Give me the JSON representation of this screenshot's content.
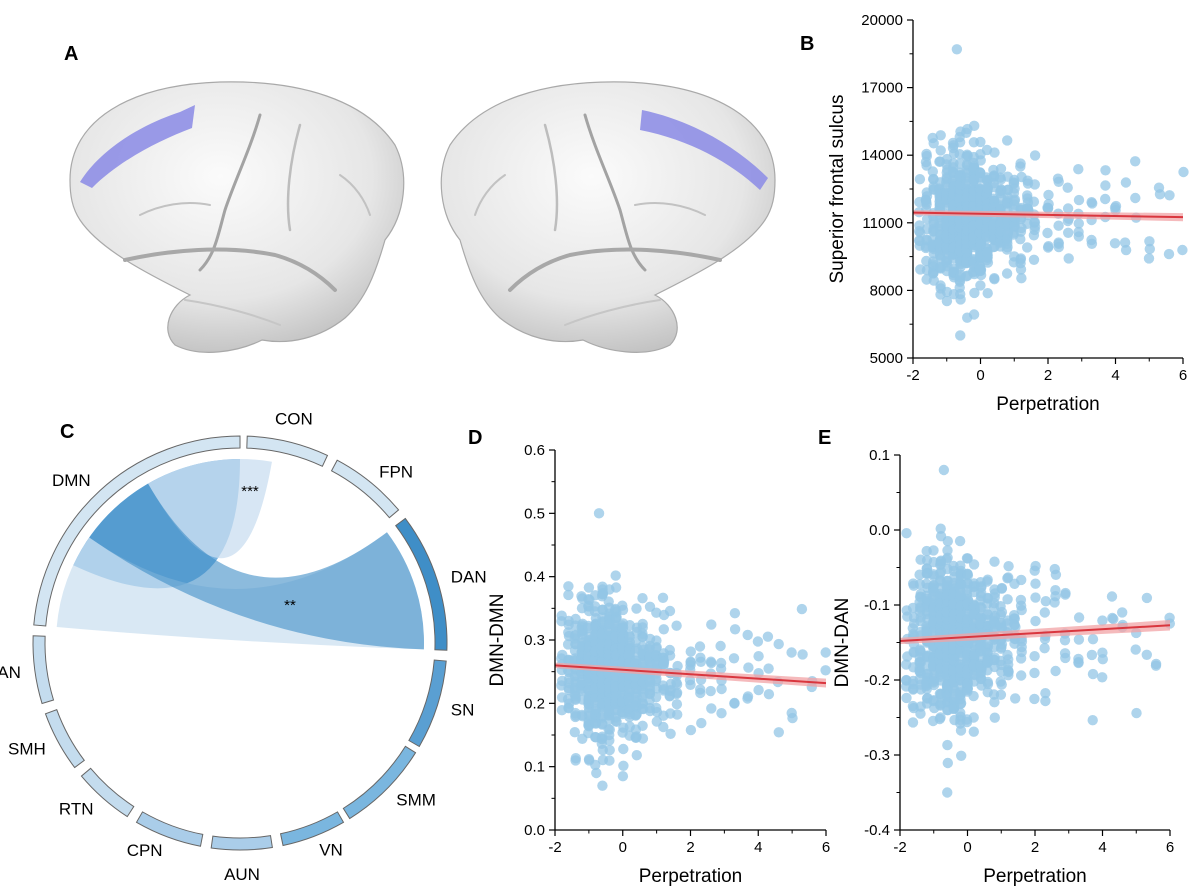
{
  "panels": {
    "A": "A",
    "B": "B",
    "C": "C",
    "D": "D",
    "E": "E"
  },
  "colors": {
    "point": "#93c5e6",
    "line": "#d9363e",
    "band": "#f1a3a6",
    "roi": "#8f8fe6",
    "brain": "#e9e9e9",
    "chord_light": "#cfe2f1",
    "chord_mid": "#6aaedd",
    "dan": "#3f8ec7"
  },
  "chart_data": [
    {
      "id": "B",
      "type": "scatter",
      "xlabel": "Perpetration",
      "ylabel": "Superior frontal sulcus",
      "xlim": [
        -2,
        6
      ],
      "ylim": [
        5000,
        20000
      ],
      "xticks": [
        "-2",
        "0",
        "2",
        "4",
        "6"
      ],
      "yticks": [
        "5000",
        "8000",
        "11000",
        "14000",
        "17000",
        "20000"
      ],
      "x_levels": [
        -1.8,
        -1.6,
        -1.4,
        -1.2,
        -1.0,
        -0.8,
        -0.6,
        -0.4,
        -0.2,
        0.0,
        0.2,
        0.4,
        0.6,
        0.8,
        1.0,
        1.2,
        1.4,
        1.6,
        2.0,
        2.3,
        2.6,
        2.9,
        3.3,
        3.7,
        4.0,
        4.3,
        4.6,
        5.0,
        5.3,
        5.6,
        6.0
      ],
      "x_weights": [
        10,
        20,
        30,
        45,
        60,
        80,
        100,
        95,
        80,
        65,
        50,
        40,
        32,
        26,
        20,
        16,
        12,
        10,
        8,
        7,
        6,
        6,
        5,
        4,
        4,
        3,
        3,
        3,
        2,
        2,
        2
      ],
      "y_center": 11300,
      "y_spread": 1500,
      "y_min_obs": 6000,
      "y_max_obs": 18700,
      "trend": {
        "x": [
          -2,
          6
        ],
        "y": [
          11450,
          11250
        ],
        "ci": 180
      }
    },
    {
      "id": "D",
      "type": "scatter",
      "xlabel": "Perpetration",
      "ylabel": "DMN-DMN",
      "xlim": [
        -2,
        6
      ],
      "ylim": [
        0.0,
        0.6
      ],
      "xticks": [
        "-2",
        "0",
        "2",
        "4",
        "6"
      ],
      "yticks": [
        "0.0",
        "0.1",
        "0.2",
        "0.3",
        "0.4",
        "0.5",
        "0.6"
      ],
      "x_levels": [
        -1.8,
        -1.6,
        -1.4,
        -1.2,
        -1.0,
        -0.8,
        -0.6,
        -0.4,
        -0.2,
        0.0,
        0.2,
        0.4,
        0.6,
        0.8,
        1.0,
        1.2,
        1.4,
        1.6,
        2.0,
        2.3,
        2.6,
        2.9,
        3.3,
        3.7,
        4.0,
        4.3,
        4.6,
        5.0,
        5.3,
        5.6,
        6.0
      ],
      "x_weights": [
        10,
        20,
        30,
        45,
        60,
        80,
        100,
        95,
        80,
        65,
        50,
        40,
        32,
        26,
        20,
        16,
        12,
        10,
        8,
        7,
        6,
        6,
        5,
        4,
        4,
        3,
        3,
        3,
        2,
        2,
        2
      ],
      "y_center": 0.25,
      "y_spread": 0.055,
      "y_min_obs": 0.07,
      "y_max_obs": 0.5,
      "trend": {
        "x": [
          -2,
          6
        ],
        "y": [
          0.26,
          0.232
        ],
        "ci": 0.007
      }
    },
    {
      "id": "E",
      "type": "scatter",
      "xlabel": "Perpetration",
      "ylabel": "DMN-DAN",
      "xlim": [
        -2,
        6
      ],
      "ylim": [
        -0.4,
        0.1
      ],
      "xticks": [
        "-2",
        "0",
        "2",
        "4",
        "6"
      ],
      "yticks": [
        "-0.4",
        "-0.3",
        "-0.2",
        "-0.1",
        "0.0",
        "0.1"
      ],
      "x_levels": [
        -1.8,
        -1.6,
        -1.4,
        -1.2,
        -1.0,
        -0.8,
        -0.6,
        -0.4,
        -0.2,
        0.0,
        0.2,
        0.4,
        0.6,
        0.8,
        1.0,
        1.2,
        1.4,
        1.6,
        2.0,
        2.3,
        2.6,
        2.9,
        3.3,
        3.7,
        4.0,
        4.3,
        4.6,
        5.0,
        5.3,
        5.6,
        6.0
      ],
      "x_weights": [
        10,
        20,
        30,
        45,
        60,
        80,
        100,
        95,
        80,
        65,
        50,
        40,
        32,
        26,
        20,
        16,
        12,
        10,
        8,
        7,
        6,
        6,
        5,
        4,
        4,
        3,
        3,
        3,
        2,
        2,
        2
      ],
      "y_center": -0.14,
      "y_spread": 0.055,
      "y_min_obs": -0.35,
      "y_max_obs": 0.08,
      "trend": {
        "x": [
          -2,
          6
        ],
        "y": [
          -0.148,
          -0.127
        ],
        "ci": 0.007
      }
    },
    {
      "id": "C",
      "type": "chord",
      "networks": [
        {
          "name": "DMN",
          "start": 275,
          "end": 360,
          "color": "#d3e5f2"
        },
        {
          "name": "CON",
          "start": 2,
          "end": 25,
          "color": "#d3e5f2"
        },
        {
          "name": "FPN",
          "start": 28,
          "end": 50,
          "color": "#d3e5f2"
        },
        {
          "name": "DAN",
          "start": 53,
          "end": 92,
          "color": "#3f8ec7"
        },
        {
          "name": "SN",
          "start": 95,
          "end": 120,
          "color": "#5a9fd2"
        },
        {
          "name": "SMM",
          "start": 122,
          "end": 148,
          "color": "#7ab6df"
        },
        {
          "name": "VN",
          "start": 150,
          "end": 168,
          "color": "#7ab6df"
        },
        {
          "name": "AUN",
          "start": 171,
          "end": 188,
          "color": "#aacde9"
        },
        {
          "name": "CPN",
          "start": 191,
          "end": 210,
          "color": "#aacde9"
        },
        {
          "name": "RTN",
          "start": 213,
          "end": 230,
          "color": "#c4dcee"
        },
        {
          "name": "SMH",
          "start": 233,
          "end": 250,
          "color": "#c4dcee"
        },
        {
          "name": "VAN",
          "start": 253,
          "end": 272,
          "color": "#c4dcee"
        }
      ],
      "links": [
        {
          "from": [
            325,
            360
          ],
          "to": [
            295,
            325
          ],
          "color": "#4a98d4",
          "opacity": 0.75,
          "label": ""
        },
        {
          "from": [
            330,
            360
          ],
          "to": [
            0,
            10
          ],
          "color": "#c9def0",
          "opacity": 0.75,
          "label": "***"
        },
        {
          "from": [
            275,
            305
          ],
          "to": [
            53,
            92
          ],
          "color": "#c9def0",
          "opacity": 0.7,
          "label": ""
        },
        {
          "from": [
            305,
            330
          ],
          "to": [
            53,
            92
          ],
          "color": "#3f8ec7",
          "opacity": 0.6,
          "label": "**"
        }
      ]
    }
  ]
}
